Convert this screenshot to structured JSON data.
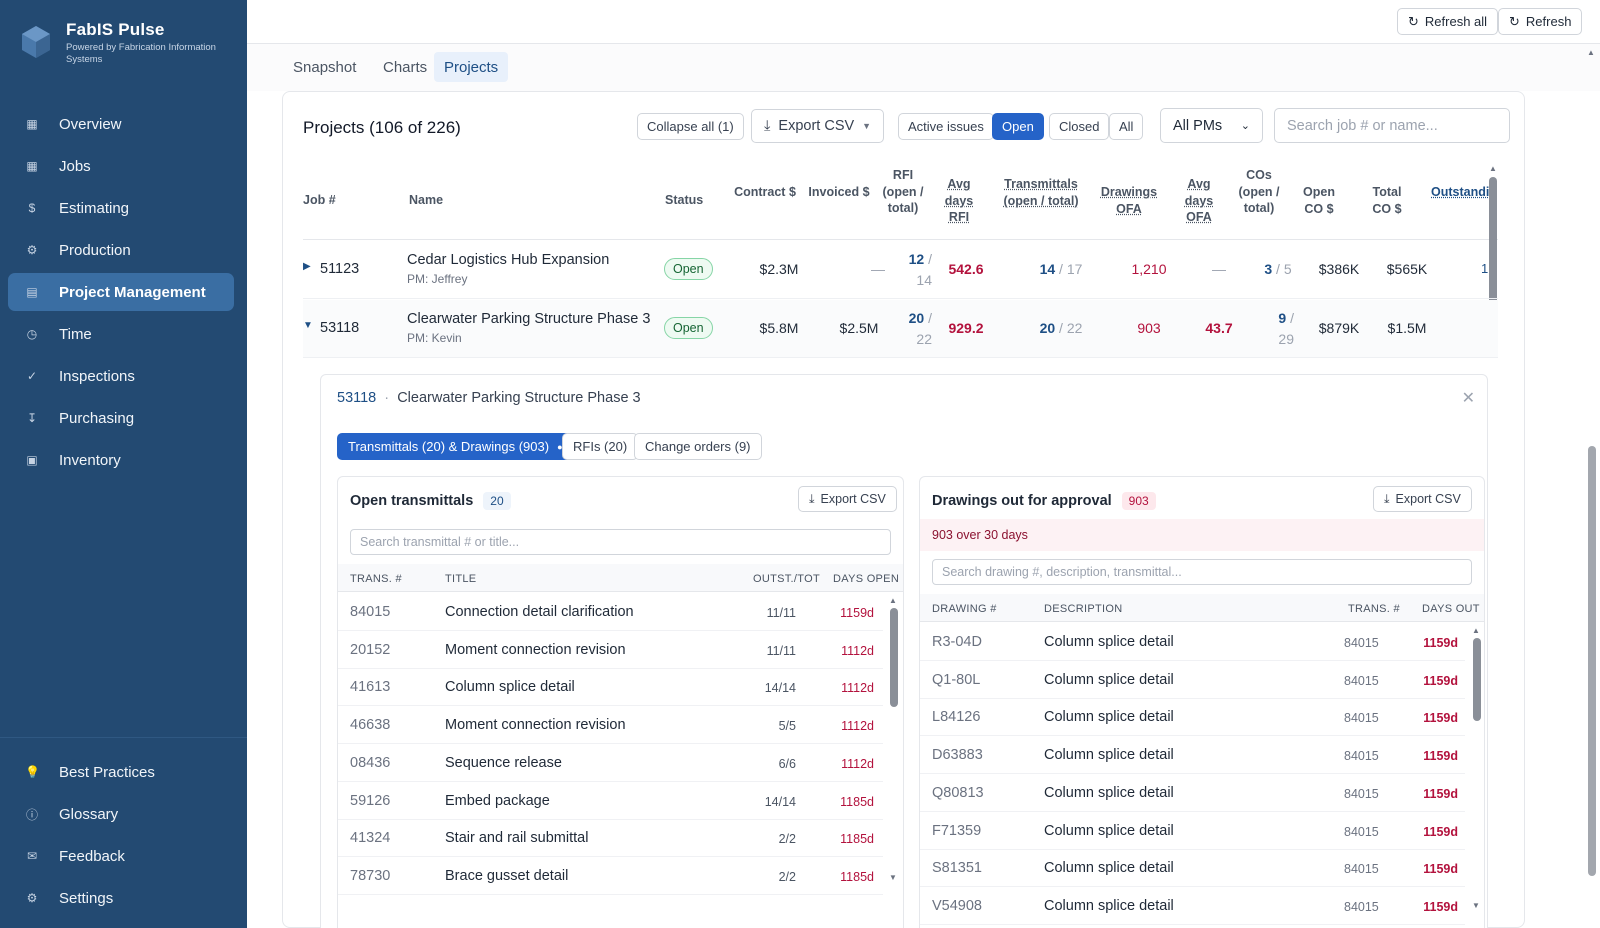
{
  "brand": {
    "name": "FabIS Pulse",
    "tagline": "Powered by Fabrication Information Systems"
  },
  "nav": [
    {
      "label": "Overview",
      "icon": "grid-icon",
      "glyph": "▦"
    },
    {
      "label": "Jobs",
      "icon": "grid-icon",
      "glyph": "▦"
    },
    {
      "label": "Estimating",
      "icon": "dollar-icon",
      "glyph": "$"
    },
    {
      "label": "Production",
      "icon": "gear-icon",
      "glyph": "⚙"
    },
    {
      "label": "Project Management",
      "icon": "grid-icon",
      "glyph": "▤",
      "active": true
    },
    {
      "label": "Time",
      "icon": "clock-icon",
      "glyph": "◷"
    },
    {
      "label": "Inspections",
      "icon": "check-icon",
      "glyph": "✓"
    },
    {
      "label": "Purchasing",
      "icon": "download-icon",
      "glyph": "↧"
    },
    {
      "label": "Inventory",
      "icon": "box-icon",
      "glyph": "▣"
    }
  ],
  "nav_bottom": [
    {
      "label": "Best Practices",
      "icon": "bulb-icon",
      "glyph": "💡"
    },
    {
      "label": "Glossary",
      "icon": "info-icon",
      "glyph": "ⓘ"
    },
    {
      "label": "Feedback",
      "icon": "mail-icon",
      "glyph": "✉"
    },
    {
      "label": "Settings",
      "icon": "gear-icon",
      "glyph": "⚙"
    }
  ],
  "topbar": {
    "refresh_all": "Refresh all",
    "refresh": "Refresh"
  },
  "tabs": [
    "Snapshot",
    "Charts",
    "Projects"
  ],
  "projects": {
    "title": "Projects (106 of 226)",
    "collapse_all": "Collapse all (1)",
    "export_csv": "Export CSV",
    "filters": [
      "Active issues",
      "Open",
      "Closed",
      "All"
    ],
    "active_filter": "Open",
    "pm_select": "All PMs",
    "search_placeholder": "Search job # or name...",
    "columns": [
      "Job #",
      "Name",
      "Status",
      "Contract $",
      "Invoiced $",
      "RFI (open / total)",
      "Avg days RFI",
      "Transmittals (open / total)",
      "Drawings OFA",
      "Avg days OFA",
      "COs (open / total)",
      "Open CO $",
      "Total CO $",
      "Outstanding items"
    ],
    "rows": [
      {
        "job": "51123",
        "name": "Cedar Logistics Hub Expansion",
        "pm": "PM: Jeffrey",
        "status": "Open",
        "contract": "$2.3M",
        "invoiced": "—",
        "rfi_open": "12",
        "rfi_total": "14",
        "avg_rfi": "542.6",
        "trans_open": "14",
        "trans_total": "17",
        "drawings_ofa": "1,210",
        "avg_ofa": "—",
        "co_open": "3",
        "co_total": "5",
        "open_co": "$386K",
        "total_co": "$565K",
        "outstanding": "1",
        "expanded": false
      },
      {
        "job": "53118",
        "name": "Clearwater Parking Structure Phase 3",
        "pm": "PM: Kevin",
        "status": "Open",
        "contract": "$5.8M",
        "invoiced": "$2.5M",
        "rfi_open": "20",
        "rfi_total": "22",
        "avg_rfi": "929.2",
        "trans_open": "20",
        "trans_total": "22",
        "drawings_ofa": "903",
        "avg_ofa": "43.7",
        "co_open": "9",
        "co_total": "29",
        "open_co": "$879K",
        "total_co": "$1.5M",
        "outstanding": "",
        "expanded": true
      }
    ]
  },
  "detail": {
    "job": "53118",
    "name": "Clearwater Parking Structure Phase 3",
    "subtabs": [
      "Transmittals (20) & Drawings (903)",
      "RFIs (20)",
      "Change orders (9)"
    ],
    "transmittals": {
      "title": "Open transmittals",
      "count": "20",
      "export": "Export CSV",
      "search_placeholder": "Search transmittal # or title...",
      "columns": [
        "TRANS. #",
        "TITLE",
        "OUTST./TOT",
        "DAYS OPEN"
      ],
      "rows": [
        {
          "num": "84015",
          "title": "Connection detail clarification",
          "frac": "11/11",
          "days": "1159d"
        },
        {
          "num": "20152",
          "title": "Moment connection revision",
          "frac": "11/11",
          "days": "1112d"
        },
        {
          "num": "41613",
          "title": "Column splice detail",
          "frac": "14/14",
          "days": "1112d"
        },
        {
          "num": "46638",
          "title": "Moment connection revision",
          "frac": "5/5",
          "days": "1112d"
        },
        {
          "num": "08436",
          "title": "Sequence release",
          "frac": "6/6",
          "days": "1112d"
        },
        {
          "num": "59126",
          "title": "Embed package",
          "frac": "14/14",
          "days": "1185d"
        },
        {
          "num": "41324",
          "title": "Stair and rail submittal",
          "frac": "2/2",
          "days": "1185d"
        },
        {
          "num": "78730",
          "title": "Brace gusset detail",
          "frac": "2/2",
          "days": "1185d"
        }
      ]
    },
    "drawings": {
      "title": "Drawings out for approval",
      "count": "903",
      "export": "Export CSV",
      "banner": "903 over 30 days",
      "search_placeholder": "Search drawing #, description, transmittal...",
      "columns": [
        "DRAWING #",
        "DESCRIPTION",
        "TRANS. #",
        "DAYS OUT"
      ],
      "rows": [
        {
          "num": "R3-04D",
          "desc": "Column splice detail",
          "trans": "84015",
          "days": "1159d"
        },
        {
          "num": "Q1-80L",
          "desc": "Column splice detail",
          "trans": "84015",
          "days": "1159d"
        },
        {
          "num": "L84126",
          "desc": "Column splice detail",
          "trans": "84015",
          "days": "1159d"
        },
        {
          "num": "D63883",
          "desc": "Column splice detail",
          "trans": "84015",
          "days": "1159d"
        },
        {
          "num": "Q80813",
          "desc": "Column splice detail",
          "trans": "84015",
          "days": "1159d"
        },
        {
          "num": "F71359",
          "desc": "Column splice detail",
          "trans": "84015",
          "days": "1159d"
        },
        {
          "num": "S81351",
          "desc": "Column splice detail",
          "trans": "84015",
          "days": "1159d"
        },
        {
          "num": "V54908",
          "desc": "Column splice detail",
          "trans": "84015",
          "days": "1159d"
        }
      ]
    }
  }
}
